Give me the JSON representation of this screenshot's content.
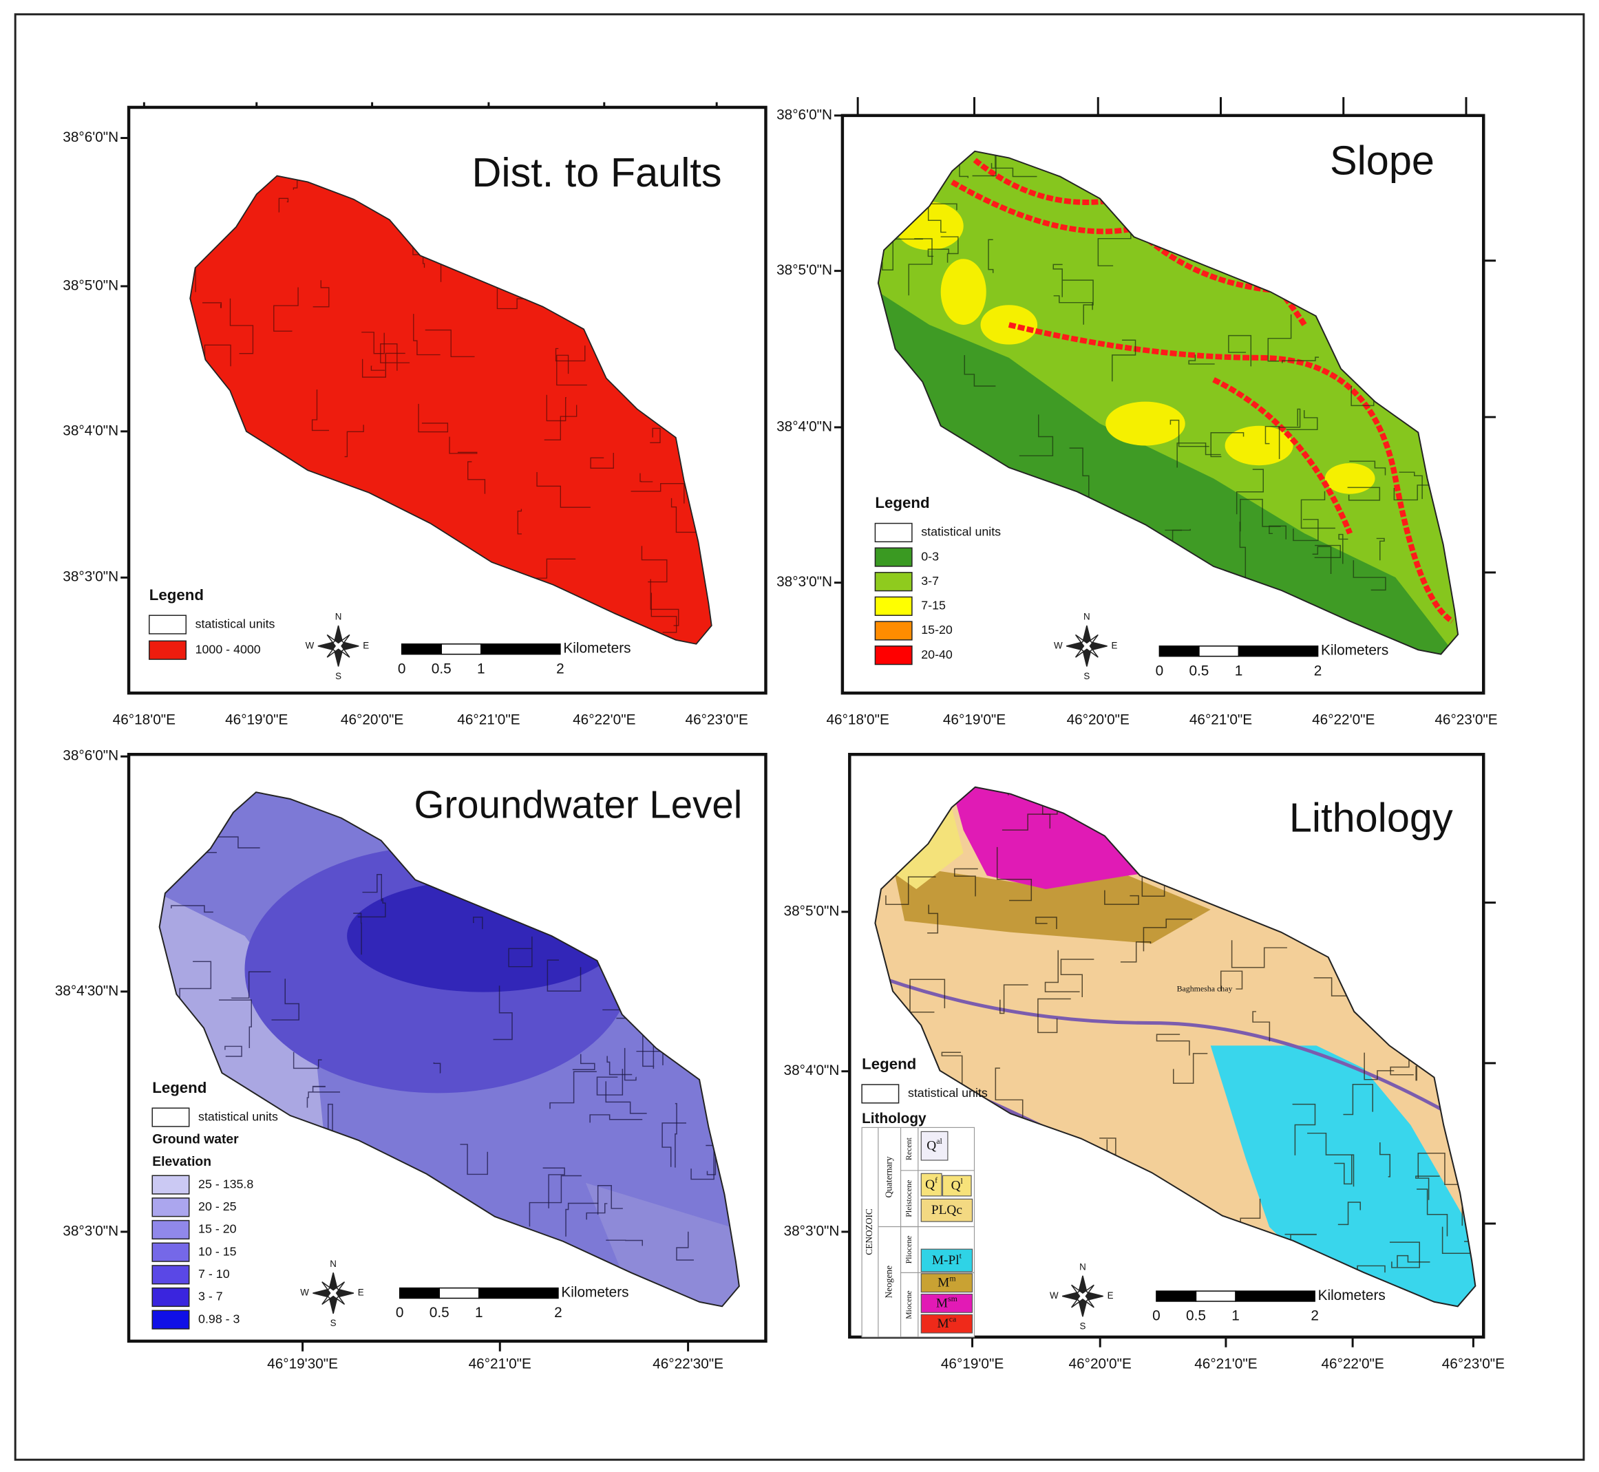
{
  "panels": [
    {
      "title": "Dist. to Faults",
      "lat_labels": [
        "38°6'0\"N",
        "38°5'0\"N",
        "38°4'0\"N",
        "38°3'0\"N"
      ],
      "lon_labels": [
        "46°18'0\"E",
        "46°19'0\"E",
        "46°20'0\"E",
        "46°21'0\"E",
        "46°22'0\"E",
        "46°23'0\"E"
      ],
      "legend": {
        "title": "Legend",
        "items": [
          {
            "label": "statistical units",
            "color": "#ffffff"
          },
          {
            "label": "1000 - 4000",
            "color": "#ee1c0e"
          }
        ]
      },
      "scale": {
        "unit": "Kilometers",
        "labels": [
          0,
          0.5,
          1,
          2
        ]
      },
      "compass": {
        "n": "N",
        "s": "S",
        "e": "E",
        "w": "W"
      }
    },
    {
      "title": "Slope",
      "lat_labels": [
        "38°6'0\"N",
        "38°5'0\"N",
        "38°4'0\"N",
        "38°3'0\"N"
      ],
      "lon_labels": [
        "46°18'0\"E",
        "46°19'0\"E",
        "46°20'0\"E",
        "46°21'0\"E",
        "46°22'0\"E",
        "46°23'0\"E"
      ],
      "legend": {
        "title": "Legend",
        "items": [
          {
            "label": "statistical units",
            "color": "#ffffff"
          },
          {
            "label": "0-3",
            "color": "#3a9a22"
          },
          {
            "label": "3-7",
            "color": "#8fcb1e"
          },
          {
            "label": "7-15",
            "color": "#ffff00"
          },
          {
            "label": "15-20",
            "color": "#ff8c00"
          },
          {
            "label": "20-40",
            "color": "#ff0000"
          }
        ]
      },
      "scale": {
        "unit": "Kilometers",
        "labels": [
          0,
          0.5,
          1,
          2
        ]
      },
      "compass": {
        "n": "N",
        "s": "S",
        "e": "E",
        "w": "W"
      }
    },
    {
      "title": "Groundwater Level",
      "lat_labels": [
        "38°6'0\"N",
        "38°4'30\"N",
        "38°3'0\"N"
      ],
      "lon_labels": [
        "46°19'30\"E",
        "46°21'0\"E",
        "46°22'30\"E"
      ],
      "legend": {
        "title": "Legend",
        "items": [
          {
            "label": "statistical units",
            "color": "#ffffff"
          }
        ],
        "group_title": [
          "Ground water",
          "Elevation"
        ],
        "classes": [
          {
            "label": "25 - 135.8",
            "color": "#cbc9f3"
          },
          {
            "label": "20 - 25",
            "color": "#aba6ee"
          },
          {
            "label": "15 - 20",
            "color": "#9088ea"
          },
          {
            "label": "10 - 15",
            "color": "#7568e8"
          },
          {
            "label": "7 - 10",
            "color": "#5a48e6"
          },
          {
            "label": "3 - 7",
            "color": "#3a25de"
          },
          {
            "label": "0.98 - 3",
            "color": "#1010e6"
          }
        ]
      },
      "scale": {
        "unit": "Kilometers",
        "labels": [
          0,
          0.5,
          1,
          2
        ]
      },
      "compass": {
        "n": "N",
        "s": "S",
        "e": "E",
        "w": "W"
      }
    },
    {
      "title": "Lithology",
      "lat_labels": [
        "38°5'0\"N",
        "38°4'0\"N",
        "38°3'0\"N"
      ],
      "lon_labels": [
        "46°19'0\"E",
        "46°20'0\"E",
        "46°21'0\"E",
        "46°22'0\"E",
        "46°23'0\"E"
      ],
      "legend": {
        "title": "Legend",
        "items": [
          {
            "label": "statistical units",
            "color": "#ffffff"
          }
        ],
        "lithology": {
          "title": "Lithology",
          "era": "CENOZOIC",
          "periods": [
            "Quaternary",
            "Neogene"
          ],
          "epochs": [
            "Recent",
            "Pleistocene",
            "Pliocene",
            "Miocene"
          ],
          "units": [
            {
              "base": "Q",
              "sup": "al",
              "color": "#f0eef8"
            },
            {
              "base": "Q",
              "sup": "f",
              "color": "#f7e27a"
            },
            {
              "base": "Q",
              "sup": "l",
              "color": "#f7e27a"
            },
            {
              "base": "PLQc",
              "color": "#f3d982"
            },
            {
              "base": "M-Pl",
              "sup": "t",
              "color": "#2fd3e6"
            },
            {
              "base": "M",
              "sup": "m",
              "color": "#c9a233"
            },
            {
              "base": "M",
              "sup": "sm",
              "color": "#e21ab5"
            },
            {
              "base": "M",
              "sup": "ca",
              "color": "#ef2a1a"
            }
          ]
        }
      },
      "map_labels": [
        "Baghmesha chay"
      ],
      "scale": {
        "unit": "Kilometers",
        "labels": [
          0,
          0.5,
          1,
          2
        ]
      },
      "compass": {
        "n": "N",
        "s": "S",
        "e": "E",
        "w": "W"
      }
    }
  ]
}
